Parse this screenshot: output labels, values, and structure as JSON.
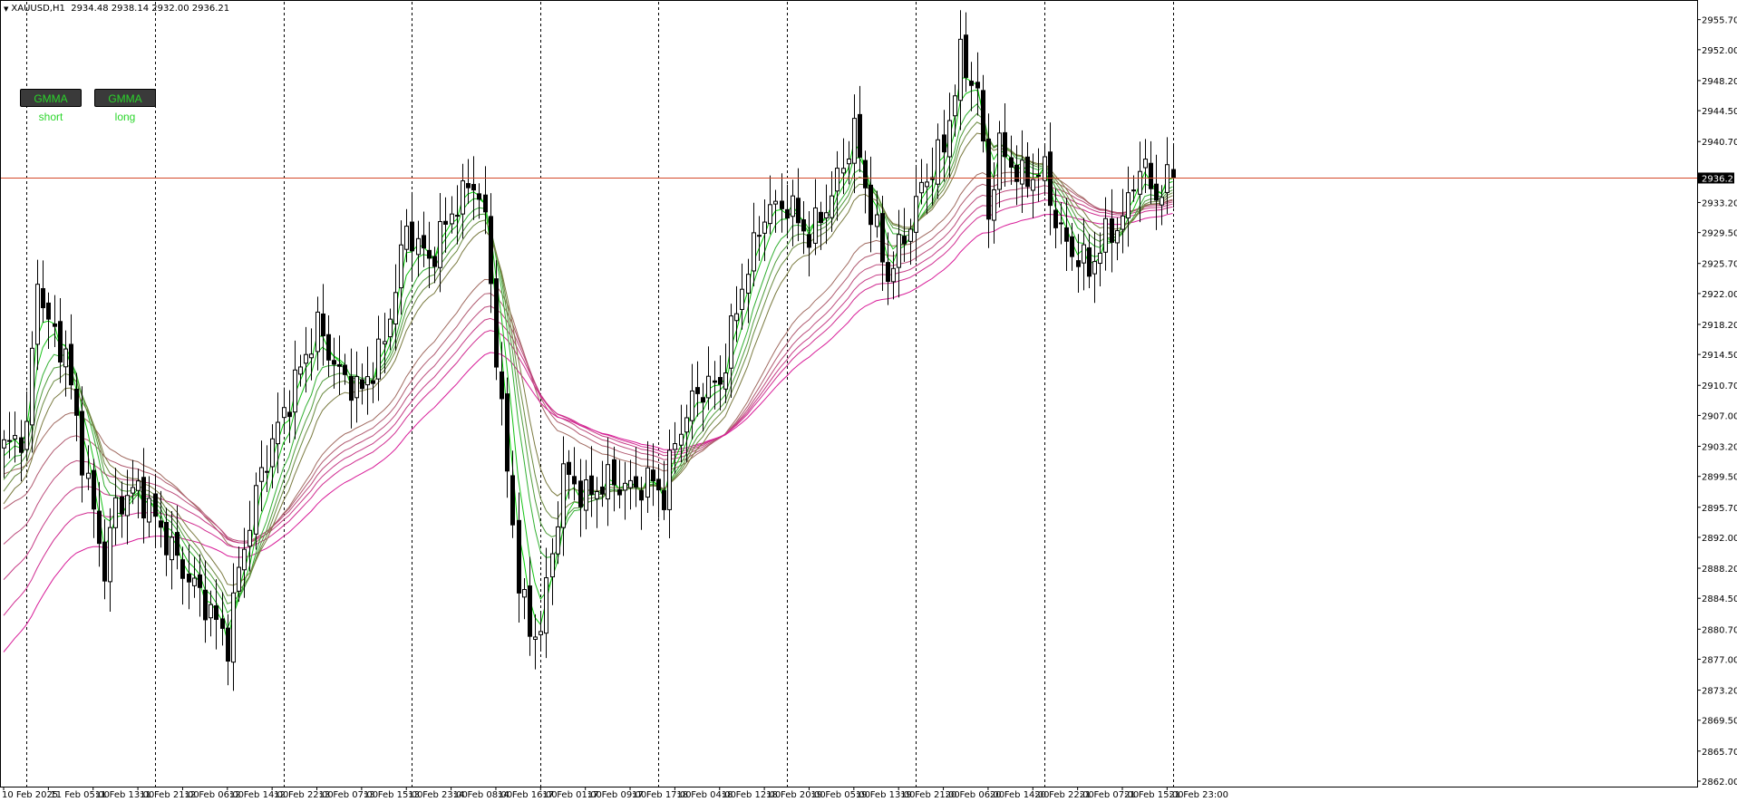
{
  "header": {
    "symbol": "XAUUSD,H1",
    "ohlc": "2934.48 2938.14 2932.00 2936.21"
  },
  "buttons": {
    "short_label": "GMMA short",
    "long_label": "GMMA long"
  },
  "chart_data": {
    "type": "candlestick",
    "ylim": [
      2862.0,
      2957.0
    ],
    "y_ticks": [
      "2955.70",
      "2952.00",
      "2948.20",
      "2944.50",
      "2940.70",
      "2936.21",
      "2933.20",
      "2929.50",
      "2925.70",
      "2922.00",
      "2918.20",
      "2914.50",
      "2910.70",
      "2907.00",
      "2903.20",
      "2899.50",
      "2895.70",
      "2892.00",
      "2888.20",
      "2884.50",
      "2880.70",
      "2877.00",
      "2873.20",
      "2869.50",
      "2865.70",
      "2862.00"
    ],
    "current_price": 2936.21,
    "current_price_label": "2936.21",
    "x_labels": [
      {
        "index": 0,
        "label": "10 Feb 2025"
      },
      {
        "index": 8,
        "label": "11 Feb 05:00"
      },
      {
        "index": 16,
        "label": "11 Feb 13:00"
      },
      {
        "index": 24,
        "label": "11 Feb 21:00"
      },
      {
        "index": 32,
        "label": "12 Feb 06:00"
      },
      {
        "index": 40,
        "label": "12 Feb 14:00"
      },
      {
        "index": 48,
        "label": "12 Feb 22:00"
      },
      {
        "index": 56,
        "label": "13 Feb 07:00"
      },
      {
        "index": 64,
        "label": "13 Feb 15:00"
      },
      {
        "index": 72,
        "label": "13 Feb 23:00"
      },
      {
        "index": 80,
        "label": "14 Feb 08:00"
      },
      {
        "index": 88,
        "label": "14 Feb 16:00"
      },
      {
        "index": 96,
        "label": "17 Feb 01:00"
      },
      {
        "index": 104,
        "label": "17 Feb 09:00"
      },
      {
        "index": 112,
        "label": "17 Feb 17:00"
      },
      {
        "index": 120,
        "label": "18 Feb 04:00"
      },
      {
        "index": 128,
        "label": "18 Feb 12:00"
      },
      {
        "index": 136,
        "label": "18 Feb 20:00"
      },
      {
        "index": 144,
        "label": "19 Feb 05:00"
      },
      {
        "index": 152,
        "label": "19 Feb 13:00"
      },
      {
        "index": 160,
        "label": "19 Feb 21:00"
      },
      {
        "index": 168,
        "label": "20 Feb 06:00"
      },
      {
        "index": 176,
        "label": "20 Feb 14:00"
      },
      {
        "index": 184,
        "label": "20 Feb 22:00"
      },
      {
        "index": 192,
        "label": "21 Feb 07:00"
      },
      {
        "index": 200,
        "label": "21 Feb 15:00"
      },
      {
        "index": 208,
        "label": "21 Feb 23:00"
      }
    ],
    "separators": [
      4,
      27,
      50,
      73,
      96,
      117,
      140,
      163,
      186,
      209
    ],
    "close_path": [
      [
        0,
        2903.0
      ],
      [
        4,
        2905.0
      ],
      [
        6,
        2924.0
      ],
      [
        8,
        2918.0
      ],
      [
        11,
        2914.5
      ],
      [
        14,
        2902.0
      ],
      [
        18,
        2888.0
      ],
      [
        20,
        2896.0
      ],
      [
        24,
        2898.0
      ],
      [
        28,
        2893.0
      ],
      [
        32,
        2888.0
      ],
      [
        36,
        2884.0
      ],
      [
        40,
        2879.0
      ],
      [
        42,
        2888.0
      ],
      [
        46,
        2900.0
      ],
      [
        52,
        2911.0
      ],
      [
        56,
        2918.0
      ],
      [
        60,
        2912.0
      ],
      [
        64,
        2910.0
      ],
      [
        68,
        2916.0
      ],
      [
        72,
        2930.0
      ],
      [
        76,
        2926.0
      ],
      [
        80,
        2932.0
      ],
      [
        84,
        2936.0
      ],
      [
        86,
        2931.0
      ],
      [
        88,
        2915.0
      ],
      [
        90,
        2900.0
      ],
      [
        92,
        2887.0
      ],
      [
        94,
        2880.0
      ],
      [
        96,
        2881.0
      ],
      [
        98,
        2890.0
      ],
      [
        100,
        2900.0
      ],
      [
        104,
        2897.0
      ],
      [
        108,
        2899.0
      ],
      [
        112,
        2898.0
      ],
      [
        116,
        2899.0
      ],
      [
        118,
        2897.0
      ],
      [
        120,
        2904.0
      ],
      [
        124,
        2910.0
      ],
      [
        128,
        2911.0
      ],
      [
        132,
        2923.0
      ],
      [
        136,
        2932.0
      ],
      [
        140,
        2933.0
      ],
      [
        144,
        2929.0
      ],
      [
        148,
        2934.0
      ],
      [
        152,
        2942.0
      ],
      [
        155,
        2932.0
      ],
      [
        158,
        2924.0
      ],
      [
        161,
        2929.0
      ],
      [
        164,
        2935.0
      ],
      [
        168,
        2940.0
      ],
      [
        171,
        2951.0
      ],
      [
        174,
        2947.0
      ],
      [
        176,
        2932.0
      ],
      [
        178,
        2940.0
      ],
      [
        182,
        2936.0
      ],
      [
        186,
        2937.0
      ],
      [
        188,
        2931.0
      ],
      [
        190,
        2928.0
      ],
      [
        194,
        2925.0
      ],
      [
        197,
        2929.0
      ],
      [
        200,
        2931.0
      ],
      [
        203,
        2938.0
      ],
      [
        206,
        2934.0
      ],
      [
        209,
        2936.21
      ]
    ],
    "gmma_short_periods": [
      3,
      5,
      8,
      10,
      12,
      15
    ],
    "gmma_long_periods": [
      30,
      35,
      40,
      45,
      50,
      60
    ],
    "colors": {
      "bull_candle": "#ffffff",
      "bear_candle": "#000000",
      "candle_outline": "#000000",
      "gmma_short": [
        "#00d400",
        "#14c214",
        "#32b032",
        "#509c3c",
        "#6a8a40",
        "#7a7a40"
      ],
      "gmma_long": [
        "#a06a60",
        "#b05a70",
        "#bc4c7c",
        "#c63c86",
        "#d02c90",
        "#d81c98"
      ],
      "price_line": "#d44a2a",
      "separator": "#000000"
    }
  }
}
